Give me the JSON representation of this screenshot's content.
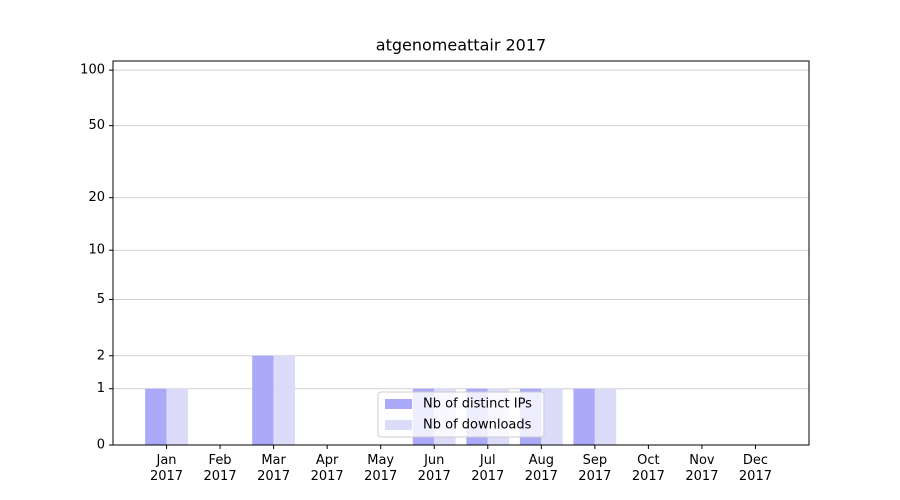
{
  "chart_data": {
    "type": "bar",
    "title": "atgenomeattair 2017",
    "categories": [
      "Jan 2017",
      "Feb 2017",
      "Mar 2017",
      "Apr 2017",
      "May 2017",
      "Jun 2017",
      "Jul 2017",
      "Aug 2017",
      "Sep 2017",
      "Oct 2017",
      "Nov 2017",
      "Dec 2017"
    ],
    "series": [
      {
        "name": "Nb of distinct IPs",
        "color": "#aaaaf8",
        "values": [
          1,
          0,
          2,
          0,
          0,
          1,
          1,
          1,
          1,
          0,
          0,
          0
        ]
      },
      {
        "name": "Nb of downloads",
        "color": "#dcdcfa",
        "values": [
          1,
          0,
          2,
          0,
          0,
          1,
          1,
          1,
          1,
          0,
          0,
          0
        ]
      }
    ],
    "yscale": "log1p",
    "ylim": [
      0,
      112
    ],
    "yticks": [
      0,
      1,
      2,
      5,
      10,
      20,
      50,
      100
    ],
    "grid": true,
    "legend": "lower center"
  }
}
